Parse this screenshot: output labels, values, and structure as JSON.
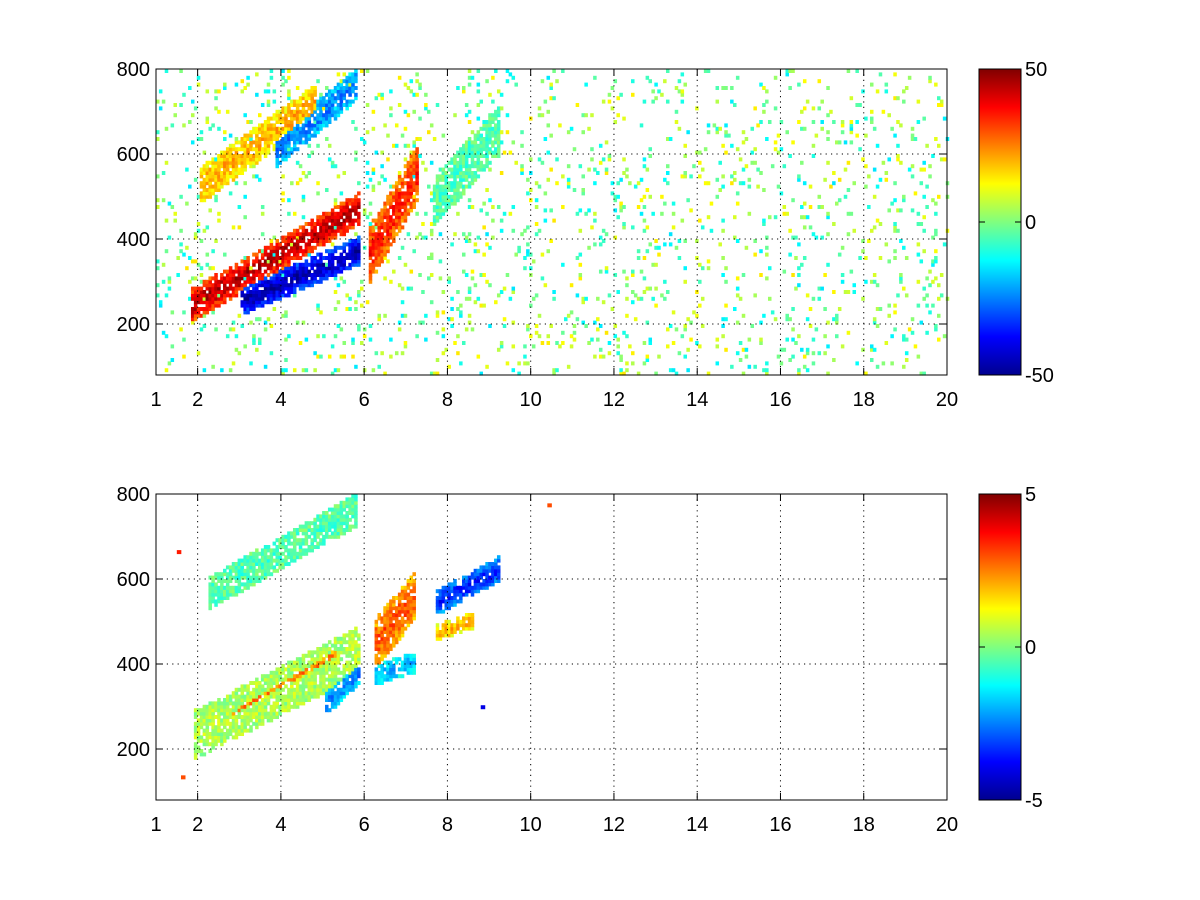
{
  "figure": {
    "background": "#ffffff"
  },
  "chart_data": [
    {
      "type": "heatmap",
      "panel": "top",
      "title": "",
      "xlabel": "",
      "ylabel": "",
      "xlim": [
        1,
        20
      ],
      "ylim": [
        80,
        800
      ],
      "x_ticks": [
        1,
        2,
        4,
        6,
        8,
        10,
        12,
        14,
        16,
        18,
        20
      ],
      "x_tick_labels": [
        "1",
        "2",
        "4",
        "6",
        "8",
        "10",
        "12",
        "14",
        "16",
        "18",
        "20"
      ],
      "y_ticks": [
        200,
        400,
        600,
        800
      ],
      "y_tick_labels": [
        "200",
        "400",
        "600",
        "800"
      ],
      "grid": true,
      "colormap": "jet",
      "clim": [
        -50,
        50
      ],
      "colorbar_ticks": [
        50,
        0,
        -50
      ],
      "colorbar_tick_labels": [
        "50",
        "0",
        "-50"
      ],
      "features": [
        {
          "x_range": [
            1.8,
            5.9
          ],
          "y_at_start": 240,
          "y_at_end": 470,
          "value": 45,
          "width": 40
        },
        {
          "x_range": [
            3.0,
            5.9
          ],
          "y_at_start": 250,
          "y_at_end": 370,
          "value": -45,
          "width": 35
        },
        {
          "x_range": [
            2.0,
            4.8
          ],
          "y_at_start": 520,
          "y_at_end": 720,
          "value": 20,
          "width": 45
        },
        {
          "x_range": [
            3.8,
            5.8
          ],
          "y_at_start": 600,
          "y_at_end": 760,
          "value": -25,
          "width": 40
        },
        {
          "x_range": [
            6.1,
            7.3
          ],
          "y_at_start": 360,
          "y_at_end": 560,
          "value": 35,
          "width": 70
        },
        {
          "x_range": [
            7.6,
            9.2
          ],
          "y_at_start": 480,
          "y_at_end": 650,
          "value": -5,
          "width": 60
        }
      ],
      "scattered_noise_range": [
        -15,
        15
      ]
    },
    {
      "type": "heatmap",
      "panel": "bottom",
      "title": "",
      "xlabel": "",
      "ylabel": "",
      "xlim": [
        1,
        20
      ],
      "ylim": [
        80,
        800
      ],
      "x_ticks": [
        1,
        2,
        4,
        6,
        8,
        10,
        12,
        14,
        16,
        18,
        20
      ],
      "x_tick_labels": [
        "1",
        "2",
        "4",
        "6",
        "8",
        "10",
        "12",
        "14",
        "16",
        "18",
        "20"
      ],
      "y_ticks": [
        200,
        400,
        600,
        800
      ],
      "y_tick_labels": [
        "200",
        "400",
        "600",
        "800"
      ],
      "grid": true,
      "colormap": "jet",
      "clim": [
        -5,
        5
      ],
      "colorbar_ticks": [
        5,
        0,
        -5
      ],
      "colorbar_tick_labels": [
        "5",
        "0",
        "-5"
      ],
      "features": [
        {
          "x_range": [
            1.9,
            5.9
          ],
          "y_at_start": 230,
          "y_at_end": 430,
          "value": 0.5,
          "width": 60
        },
        {
          "x_range": [
            2.8,
            5.3
          ],
          "y_at_start": 280,
          "y_at_end": 420,
          "value": 2.5,
          "width": 20
        },
        {
          "x_range": [
            2.2,
            5.8
          ],
          "y_at_start": 560,
          "y_at_end": 760,
          "value": -0.5,
          "width": 40
        },
        {
          "x_range": [
            5.0,
            5.9
          ],
          "y_at_start": 300,
          "y_at_end": 380,
          "value": -2.5,
          "width": 30
        },
        {
          "x_range": [
            6.2,
            7.2
          ],
          "y_at_start": 440,
          "y_at_end": 560,
          "value": 3.0,
          "width": 60
        },
        {
          "x_range": [
            6.2,
            7.2
          ],
          "y_at_start": 370,
          "y_at_end": 400,
          "value": -2.0,
          "width": 25
        },
        {
          "x_range": [
            7.7,
            9.2
          ],
          "y_at_start": 540,
          "y_at_end": 620,
          "value": -3.5,
          "width": 30
        },
        {
          "x_range": [
            7.7,
            8.6
          ],
          "y_at_start": 470,
          "y_at_end": 500,
          "value": 2.0,
          "width": 20
        }
      ],
      "isolated_points": [
        {
          "x": 10.4,
          "y": 770,
          "value": 3.0
        },
        {
          "x": 8.8,
          "y": 295,
          "value": -4.0
        },
        {
          "x": 1.5,
          "y": 660,
          "value": 3.5
        },
        {
          "x": 1.6,
          "y": 130,
          "value": 3.0
        }
      ]
    }
  ]
}
